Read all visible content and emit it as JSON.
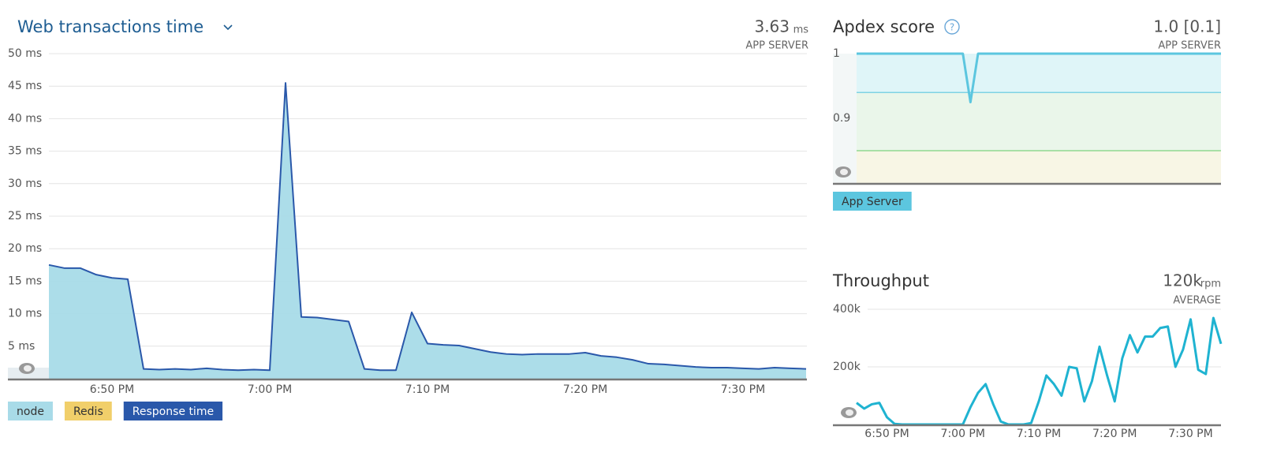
{
  "chart_data": [
    {
      "type": "area",
      "title": "Web transactions time",
      "summary_value": "3.63",
      "summary_unit": "ms",
      "summary_label": "APP SERVER",
      "categories": [
        null,
        null,
        null,
        null,
        "6:50 PM",
        null,
        null,
        null,
        null,
        null,
        null,
        null,
        null,
        null,
        "7:00 PM",
        null,
        null,
        null,
        null,
        null,
        null,
        null,
        null,
        null,
        "7:10 PM",
        null,
        null,
        null,
        null,
        null,
        null,
        null,
        null,
        null,
        "7:20 PM",
        null,
        null,
        null,
        null,
        null,
        null,
        null,
        null,
        null,
        "7:30 PM",
        null,
        null,
        null,
        null
      ],
      "series": [
        {
          "name": "node",
          "type": "area",
          "color": "#a8dbe8",
          "values": [
            17.5,
            17.0,
            17.0,
            16.0,
            15.5,
            15.3,
            1.5,
            1.4,
            1.5,
            1.4,
            1.6,
            1.4,
            1.3,
            1.4,
            1.3,
            45.5,
            9.5,
            9.4,
            9.1,
            8.8,
            1.5,
            1.3,
            1.3,
            10.2,
            5.4,
            5.2,
            5.1,
            4.6,
            4.1,
            3.8,
            3.7,
            3.8,
            3.8,
            3.8,
            4.0,
            3.5,
            3.3,
            2.9,
            2.3,
            2.2,
            2.0,
            1.8,
            1.7,
            1.7,
            1.6,
            1.5,
            1.7,
            1.6,
            1.5
          ]
        },
        {
          "name": "Redis",
          "type": "area",
          "color": "#f1cf6a",
          "values": [
            0,
            0,
            0,
            0,
            0,
            0,
            0,
            0,
            0,
            0,
            0,
            0,
            0,
            0,
            0,
            0,
            0,
            0,
            0,
            0,
            0,
            0,
            0,
            0,
            0,
            0,
            0,
            0,
            0,
            0,
            0,
            0,
            0,
            0,
            0,
            0,
            0,
            0,
            0,
            0,
            0,
            0,
            0,
            0,
            0,
            0,
            0,
            0,
            0
          ]
        },
        {
          "name": "Response time",
          "type": "line",
          "color": "#2a58aa",
          "values": [
            17.5,
            17.0,
            17.0,
            16.0,
            15.5,
            15.3,
            1.5,
            1.4,
            1.5,
            1.4,
            1.6,
            1.4,
            1.3,
            1.4,
            1.3,
            45.5,
            9.5,
            9.4,
            9.1,
            8.8,
            1.5,
            1.3,
            1.3,
            10.2,
            5.4,
            5.2,
            5.1,
            4.6,
            4.1,
            3.8,
            3.7,
            3.8,
            3.8,
            3.8,
            4.0,
            3.5,
            3.3,
            2.9,
            2.3,
            2.2,
            2.0,
            1.8,
            1.7,
            1.7,
            1.6,
            1.5,
            1.7,
            1.6,
            1.5
          ]
        }
      ],
      "ylim": [
        0,
        50
      ],
      "yticks": [
        {
          "value": 5,
          "label": "5 ms"
        },
        {
          "value": 10,
          "label": "10 ms"
        },
        {
          "value": 15,
          "label": "15 ms"
        },
        {
          "value": 20,
          "label": "20 ms"
        },
        {
          "value": 25,
          "label": "25 ms"
        },
        {
          "value": 30,
          "label": "30 ms"
        },
        {
          "value": 35,
          "label": "35 ms"
        },
        {
          "value": 40,
          "label": "40 ms"
        },
        {
          "value": 45,
          "label": "45 ms"
        },
        {
          "value": 50,
          "label": "50 ms"
        }
      ],
      "grid": true
    },
    {
      "type": "line",
      "title": "Apdex score",
      "summary_value": "1.0 [0.1]",
      "summary_label": "APP SERVER",
      "series": [
        {
          "name": "App Server",
          "type": "line",
          "color": "#5cc6df",
          "values": [
            1,
            1,
            1,
            1,
            1,
            1,
            1,
            1,
            1,
            1,
            1,
            1,
            1,
            1,
            1,
            0.925,
            1,
            1,
            1,
            1,
            1,
            1,
            1,
            1,
            1,
            1,
            1,
            1,
            1,
            1,
            1,
            1,
            1,
            1,
            1,
            1,
            1,
            1,
            1,
            1,
            1,
            1,
            1,
            1,
            1,
            1,
            1,
            1,
            1
          ]
        }
      ],
      "thresholds": [
        0.94,
        0.85
      ],
      "ylim": [
        0.8,
        1
      ],
      "yticks": [
        0.9,
        1
      ],
      "grid": false
    },
    {
      "type": "line",
      "title": "Throughput",
      "summary_value": "120k",
      "summary_unit": "rpm",
      "summary_label": "AVERAGE",
      "categories": [
        null,
        null,
        null,
        null,
        "6:50 PM",
        null,
        null,
        null,
        null,
        null,
        null,
        null,
        null,
        null,
        "7:00 PM",
        null,
        null,
        null,
        null,
        null,
        null,
        null,
        null,
        null,
        "7:10 PM",
        null,
        null,
        null,
        null,
        null,
        null,
        null,
        null,
        null,
        "7:20 PM",
        null,
        null,
        null,
        null,
        null,
        null,
        null,
        null,
        null,
        "7:30 PM",
        null,
        null,
        null,
        null
      ],
      "color": "#1fb3d1",
      "values": [
        75000,
        55000,
        70000,
        75000,
        25000,
        2000,
        0,
        0,
        0,
        0,
        0,
        0,
        0,
        0,
        0,
        60000,
        110000,
        140000,
        70000,
        10000,
        0,
        0,
        0,
        5000,
        80000,
        170000,
        140000,
        100000,
        200000,
        195000,
        80000,
        150000,
        270000,
        170000,
        80000,
        230000,
        310000,
        250000,
        305000,
        305000,
        335000,
        340000,
        200000,
        260000,
        365000,
        190000,
        175000,
        370000,
        280000
      ],
      "ylim": [
        0,
        400000
      ],
      "yticks": [
        {
          "value": 200000,
          "label": "200k"
        },
        {
          "value": 400000,
          "label": "400k"
        }
      ],
      "grid": true
    }
  ]
}
